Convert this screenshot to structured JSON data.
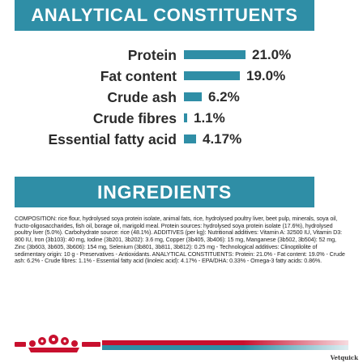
{
  "analytical": {
    "heading": "ANALYTICAL CONSTITUENTS",
    "bar_color": "#2f8ea6",
    "rows": [
      {
        "label": "Protein",
        "value": "21.0%",
        "amount": 21.0
      },
      {
        "label": "Fat content",
        "value": "19.0%",
        "amount": 19.0
      },
      {
        "label": "Crude ash",
        "value": "6.2%",
        "amount": 6.2
      },
      {
        "label": "Crude fibres",
        "value": "1.1%",
        "amount": 1.1
      },
      {
        "label": "Essential fatty acid",
        "value": "4.17%",
        "amount": 4.17
      }
    ]
  },
  "ingredients": {
    "heading": "INGREDIENTS",
    "text": "COMPOSITION: rice flour, hydrolysed soya protein isolate, animal fats, rice, hydrolysed poultry liver, beet pulp, minerals, soya oil, fructo-oligosaccharides, fish oil, borage oil, marigold meal. Protein sources: hydrolysed soya protein isolate (17.6%), hydrolysed poultry liver (5.0%). Carbohydrate source: rice (48.1%). ADDITIVES (per kg): Nutritional additives: Vitamin A: 32500 IU, Vitamin D3: 800 IU, Iron (3b103): 40 mg, Iodine (3b201, 3b202): 3.6 mg, Copper (3b405, 3b406): 15 mg, Manganese (3b502, 3b504): 52 mg, Zinc (3b603, 3b605, 3b606): 154 mg, Selenium (3b801, 3b811, 3b812): 0.25 mg - Technological additives: Clinoptilolite of sedimentary origin: 10 g - Preservatives - Antioxidants. ANALYTICAL CONSTITUENTS: Protein: 21.0% - Fat content: 19.0% - Crude ash: 6.2% - Crude fibres: 1.1% - Essential fatty acid (linoleic acid): 4.17% - EPA/DHA: 0.33% - Omega-3 fatty acids: 0.86%."
  },
  "footer": {
    "logo_icon": "royal-canin-crown-logo",
    "logo_color": "#c8102e",
    "stripe_colors": [
      "#c8102e",
      "#2f8ea6"
    ],
    "watermark": "Vetquick"
  }
}
